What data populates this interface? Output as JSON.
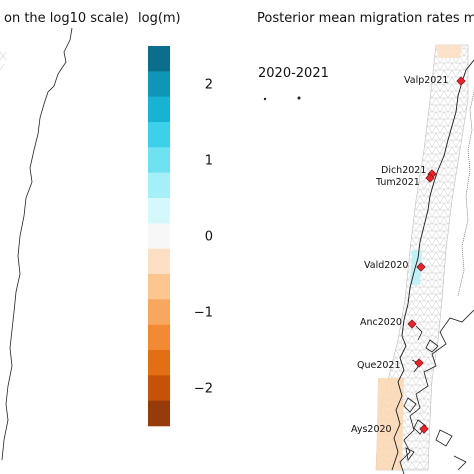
{
  "left_panel": {
    "title_fragment": "on the log10 scale)"
  },
  "legend": {
    "title": "log(m)",
    "colors": [
      "#0b6f8b",
      "#0f95b5",
      "#17b3d3",
      "#3dd0ea",
      "#6fe2f1",
      "#a5eff7",
      "#d4f8fb",
      "#f7f7f7",
      "#fde0c3",
      "#fbc690",
      "#f8a85e",
      "#f38a33",
      "#e36f14",
      "#c55208",
      "#963b0a"
    ],
    "ticks": [
      {
        "value": 2,
        "label": "2"
      },
      {
        "value": 1,
        "label": "1"
      },
      {
        "value": 0,
        "label": "0"
      },
      {
        "value": -1,
        "label": "−1"
      },
      {
        "value": -2,
        "label": "−2"
      }
    ],
    "range": [
      -2.5,
      2.5
    ]
  },
  "right_panel": {
    "title_fragment": "Posterior mean migration rates m (",
    "period_label": "2020-2021"
  },
  "chart_data": {
    "type": "heatmap",
    "colorbar": {
      "label": "log(m)",
      "min": -2.5,
      "max": 2.5,
      "ticks": [
        2,
        1,
        0,
        -1,
        -2
      ]
    },
    "sites": [
      {
        "label": "Valp2021"
      },
      {
        "label": "Dich2021"
      },
      {
        "label": "Tum2021"
      },
      {
        "label": "Vald2020"
      },
      {
        "label": "Anc2020"
      },
      {
        "label": "Que2021"
      },
      {
        "label": "Ays2020"
      }
    ],
    "marker_color": "#e8242b"
  }
}
